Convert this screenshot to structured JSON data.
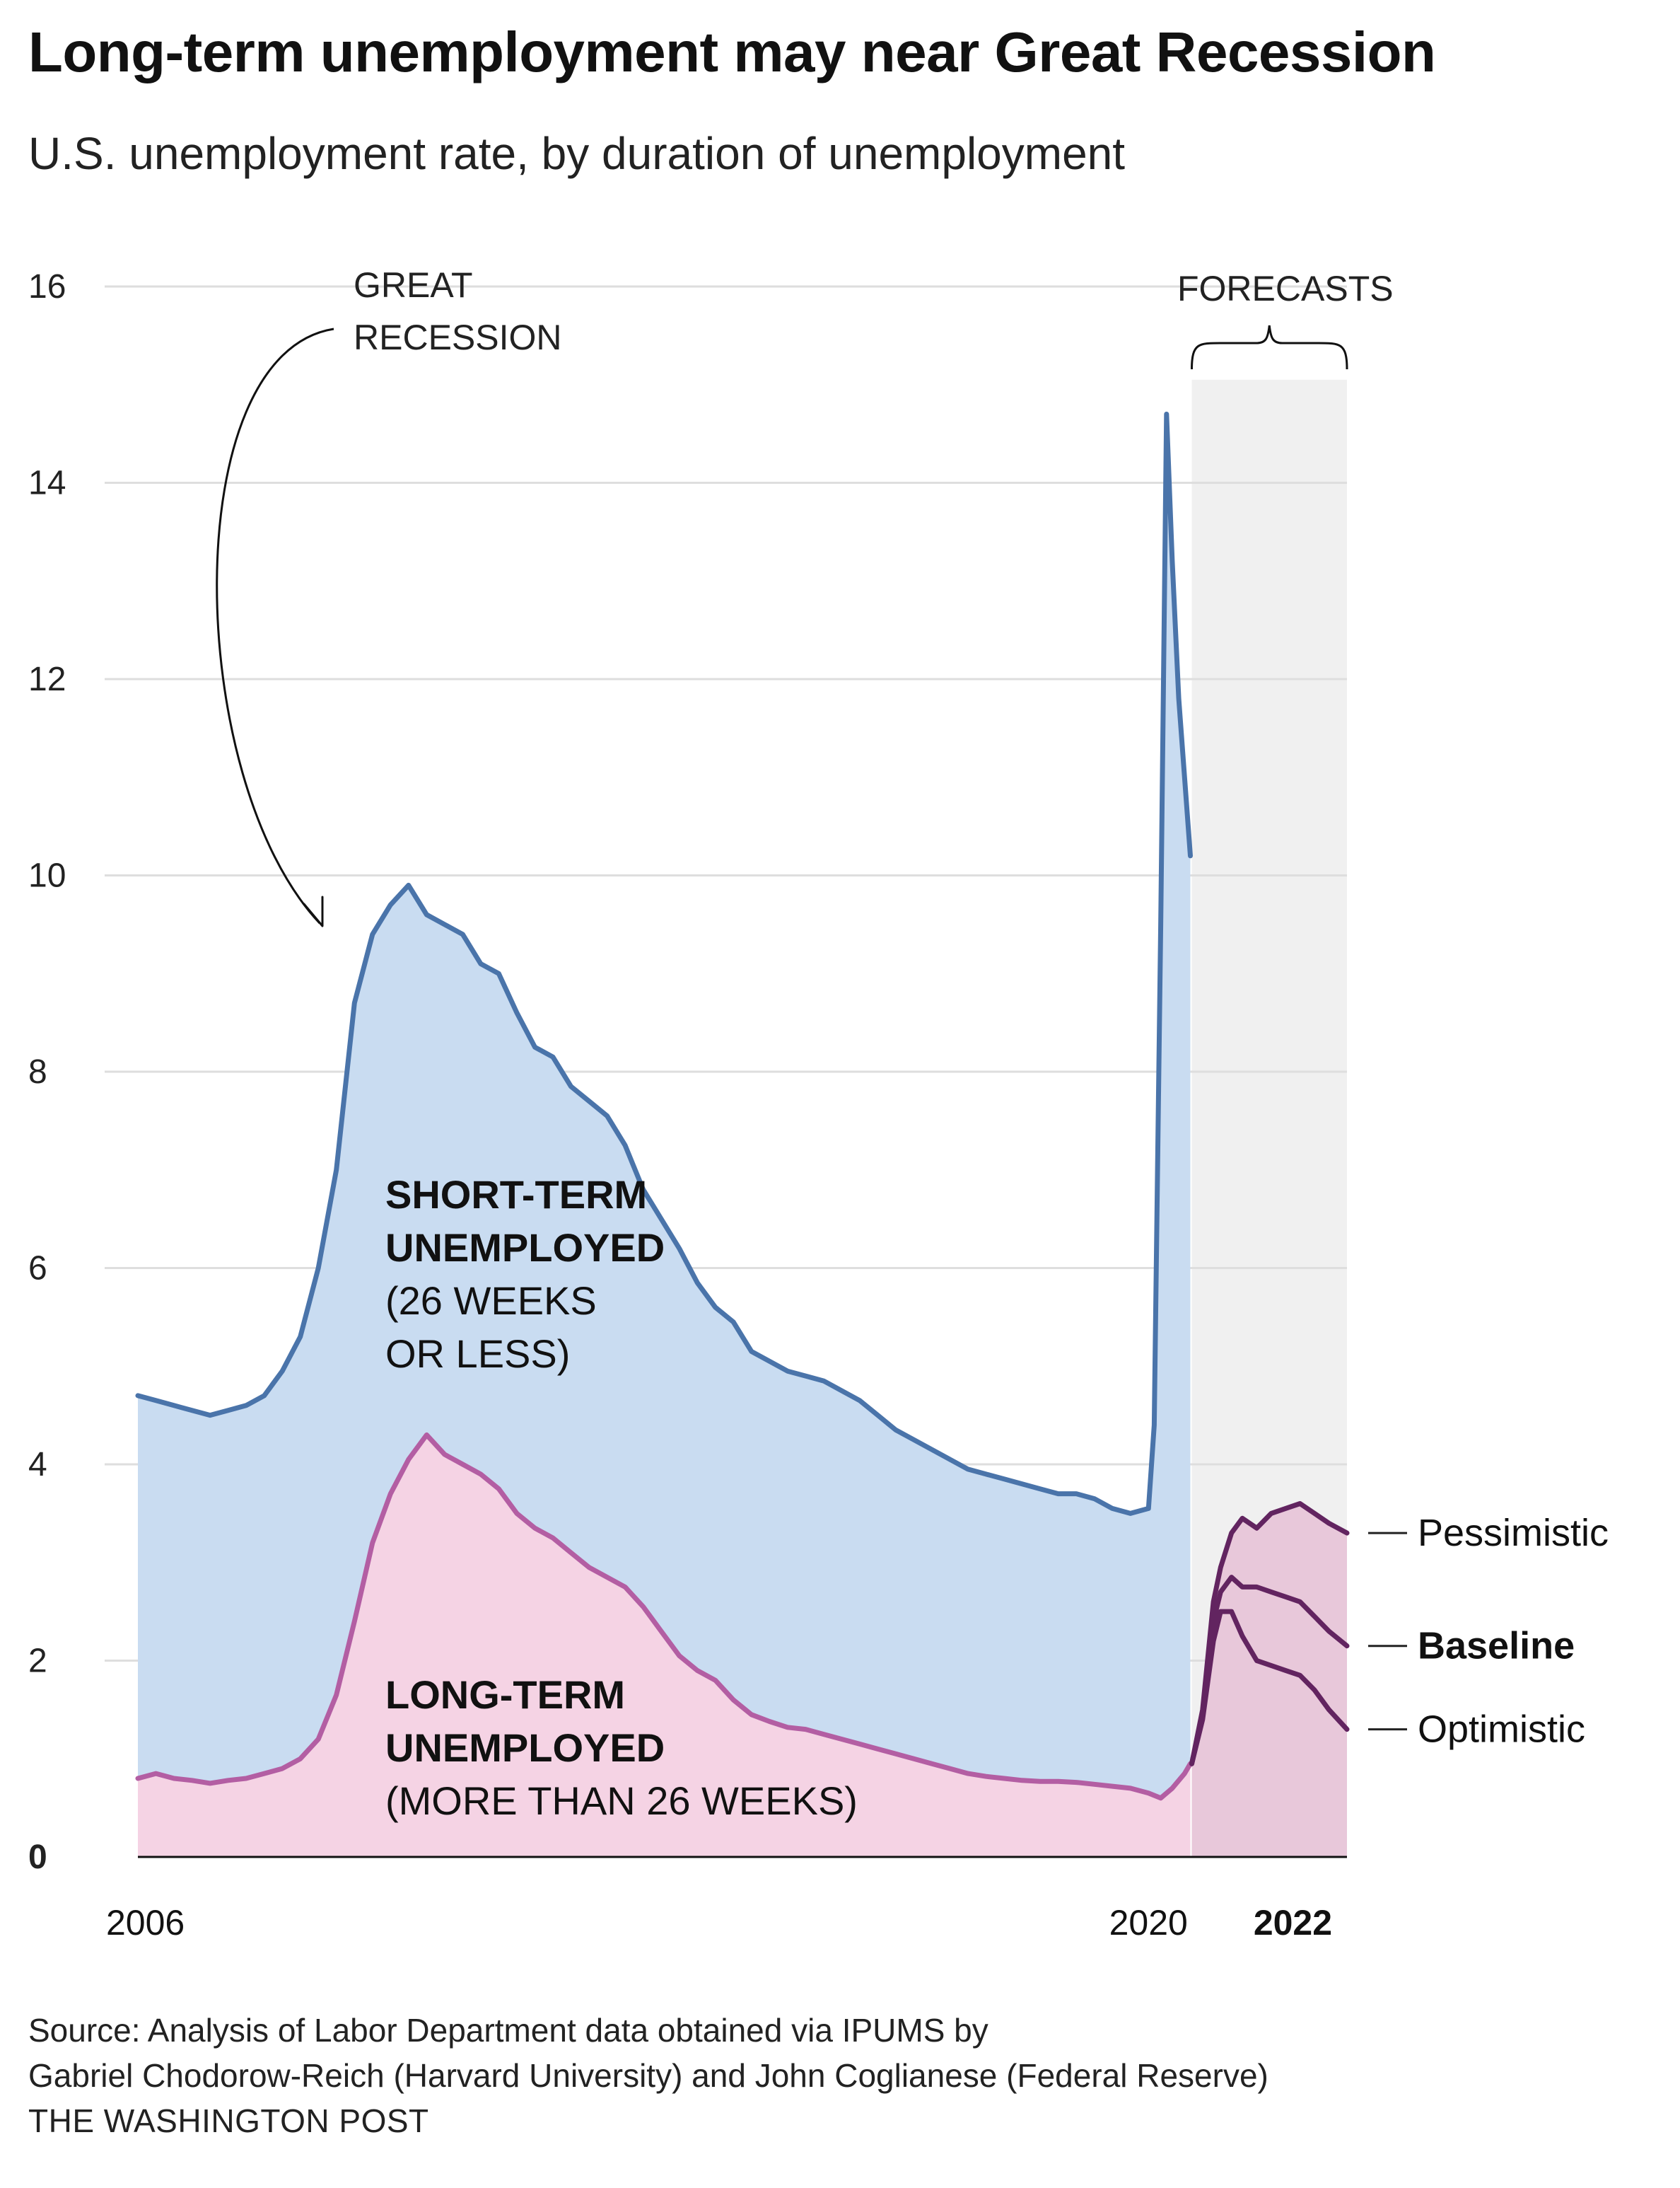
{
  "title": "Long-term unemployment may near Great Recession",
  "subtitle": "U.S. unemployment rate, by duration of unemployment",
  "chart_data": {
    "type": "area",
    "title": "Long-term unemployment may near Great Recession",
    "subtitle": "U.S. unemployment rate, by duration of unemployment",
    "xlabel": "",
    "ylabel": "",
    "ylim": [
      0,
      16
    ],
    "y_ticks": [
      0,
      2,
      4,
      6,
      8,
      10,
      12,
      14,
      16
    ],
    "y_tick_labels": [
      "0",
      "2",
      "4",
      "6",
      "8",
      "10",
      "12",
      "14",
      "16"
    ],
    "x_range": [
      2006,
      2022.75
    ],
    "x_tick_labels": [
      {
        "x": 2006,
        "label": "2006",
        "bold": false
      },
      {
        "x": 2020,
        "label": "2020",
        "bold": false
      },
      {
        "x": 2022,
        "label": "2022",
        "bold": true
      }
    ],
    "grid": true,
    "series": [
      {
        "name": "Short-term unemployed",
        "label_lines": [
          "SHORT-TERM",
          "UNEMPLOYED",
          "(26 WEEKS",
          "OR LESS)"
        ],
        "color": "#4a74aa",
        "fill": "#c9dcf1",
        "x": [
          2006.0,
          2006.25,
          2006.5,
          2006.75,
          2007.0,
          2007.25,
          2007.5,
          2007.75,
          2008.0,
          2008.25,
          2008.5,
          2008.75,
          2009.0,
          2009.25,
          2009.5,
          2009.75,
          2010.0,
          2010.25,
          2010.5,
          2010.75,
          2011.0,
          2011.25,
          2011.5,
          2011.75,
          2012.0,
          2012.25,
          2012.5,
          2012.75,
          2013.0,
          2013.25,
          2013.5,
          2013.75,
          2014.0,
          2014.25,
          2014.5,
          2014.75,
          2015.0,
          2015.25,
          2015.5,
          2015.75,
          2016.0,
          2016.25,
          2016.5,
          2016.75,
          2017.0,
          2017.25,
          2017.5,
          2017.75,
          2018.0,
          2018.25,
          2018.5,
          2018.75,
          2019.0,
          2019.25,
          2019.5,
          2019.75,
          2020.0,
          2020.08,
          2020.17,
          2020.25,
          2020.33,
          2020.42,
          2020.5,
          2020.58
        ],
        "values": [
          4.7,
          4.65,
          4.6,
          4.55,
          4.5,
          4.55,
          4.6,
          4.7,
          4.95,
          5.3,
          6.0,
          7.0,
          8.7,
          9.4,
          9.7,
          9.9,
          9.6,
          9.5,
          9.4,
          9.1,
          9.0,
          8.6,
          8.25,
          8.15,
          7.85,
          7.7,
          7.55,
          7.25,
          6.8,
          6.5,
          6.2,
          5.85,
          5.6,
          5.45,
          5.15,
          5.05,
          4.95,
          4.9,
          4.85,
          4.75,
          4.65,
          4.5,
          4.35,
          4.25,
          4.15,
          4.05,
          3.95,
          3.9,
          3.85,
          3.8,
          3.75,
          3.7,
          3.7,
          3.65,
          3.55,
          3.5,
          3.55,
          4.4,
          9.5,
          14.7,
          13.2,
          11.8,
          11.0,
          10.2
        ]
      },
      {
        "name": "Long-term unemployed",
        "label_lines": [
          "LONG-TERM",
          "UNEMPLOYED",
          "(MORE THAN 26 WEEKS)"
        ],
        "color": "#b35ea3",
        "fill": "#f5d3e4",
        "x": [
          2006.0,
          2006.25,
          2006.5,
          2006.75,
          2007.0,
          2007.25,
          2007.5,
          2007.75,
          2008.0,
          2008.25,
          2008.5,
          2008.75,
          2009.0,
          2009.25,
          2009.5,
          2009.75,
          2010.0,
          2010.25,
          2010.5,
          2010.75,
          2011.0,
          2011.25,
          2011.5,
          2011.75,
          2012.0,
          2012.25,
          2012.5,
          2012.75,
          2013.0,
          2013.25,
          2013.5,
          2013.75,
          2014.0,
          2014.25,
          2014.5,
          2014.75,
          2015.0,
          2015.25,
          2015.5,
          2015.75,
          2016.0,
          2016.25,
          2016.5,
          2016.75,
          2017.0,
          2017.25,
          2017.5,
          2017.75,
          2018.0,
          2018.25,
          2018.5,
          2018.75,
          2019.0,
          2019.25,
          2019.5,
          2019.75,
          2020.0,
          2020.17,
          2020.33,
          2020.5,
          2020.58
        ],
        "values": [
          0.8,
          0.85,
          0.8,
          0.78,
          0.75,
          0.78,
          0.8,
          0.85,
          0.9,
          1.0,
          1.2,
          1.65,
          2.4,
          3.2,
          3.7,
          4.05,
          4.3,
          4.1,
          4.0,
          3.9,
          3.75,
          3.5,
          3.35,
          3.25,
          3.1,
          2.95,
          2.85,
          2.75,
          2.55,
          2.3,
          2.05,
          1.9,
          1.8,
          1.6,
          1.45,
          1.38,
          1.32,
          1.3,
          1.25,
          1.2,
          1.15,
          1.1,
          1.05,
          1.0,
          0.95,
          0.9,
          0.85,
          0.82,
          0.8,
          0.78,
          0.77,
          0.77,
          0.76,
          0.74,
          0.72,
          0.7,
          0.65,
          0.6,
          0.7,
          0.85,
          0.95
        ]
      }
    ],
    "forecast": {
      "label": "FORECASTS",
      "x_start": 2020.6,
      "x_end": 2022.75,
      "shade_color": "#f0f0f0",
      "fill": "#e8c8da",
      "scenarios": [
        {
          "name": "Pessimistic",
          "bold": false,
          "color": "#622460",
          "x": [
            2020.6,
            2020.75,
            2020.9,
            2021.0,
            2021.15,
            2021.3,
            2021.5,
            2021.7,
            2021.9,
            2022.1,
            2022.3,
            2022.5,
            2022.75
          ],
          "values": [
            0.95,
            1.5,
            2.6,
            2.95,
            3.3,
            3.45,
            3.35,
            3.5,
            3.55,
            3.6,
            3.5,
            3.4,
            3.3
          ]
        },
        {
          "name": "Baseline",
          "bold": true,
          "color": "#622460",
          "x": [
            2020.6,
            2020.75,
            2020.9,
            2021.0,
            2021.15,
            2021.3,
            2021.5,
            2021.7,
            2021.9,
            2022.1,
            2022.3,
            2022.5,
            2022.75
          ],
          "values": [
            0.95,
            1.45,
            2.4,
            2.7,
            2.85,
            2.75,
            2.75,
            2.7,
            2.65,
            2.6,
            2.45,
            2.3,
            2.15
          ]
        },
        {
          "name": "Optimistic",
          "bold": false,
          "color": "#622460",
          "x": [
            2020.6,
            2020.75,
            2020.9,
            2021.0,
            2021.15,
            2021.3,
            2021.5,
            2021.7,
            2021.9,
            2022.1,
            2022.3,
            2022.5,
            2022.75
          ],
          "values": [
            0.95,
            1.4,
            2.2,
            2.5,
            2.5,
            2.25,
            2.0,
            1.95,
            1.9,
            1.85,
            1.7,
            1.5,
            1.3
          ]
        }
      ]
    },
    "annotations": [
      {
        "id": "great-recession",
        "lines": [
          "GREAT",
          "RECESSION"
        ]
      }
    ]
  },
  "footer": {
    "source_line1": "Source: Analysis of Labor Department data obtained via IPUMS by",
    "source_line2": "Gabriel Chodorow-Reich (Harvard University) and John Coglianese (Federal Reserve)",
    "credit": "THE WASHINGTON POST"
  }
}
